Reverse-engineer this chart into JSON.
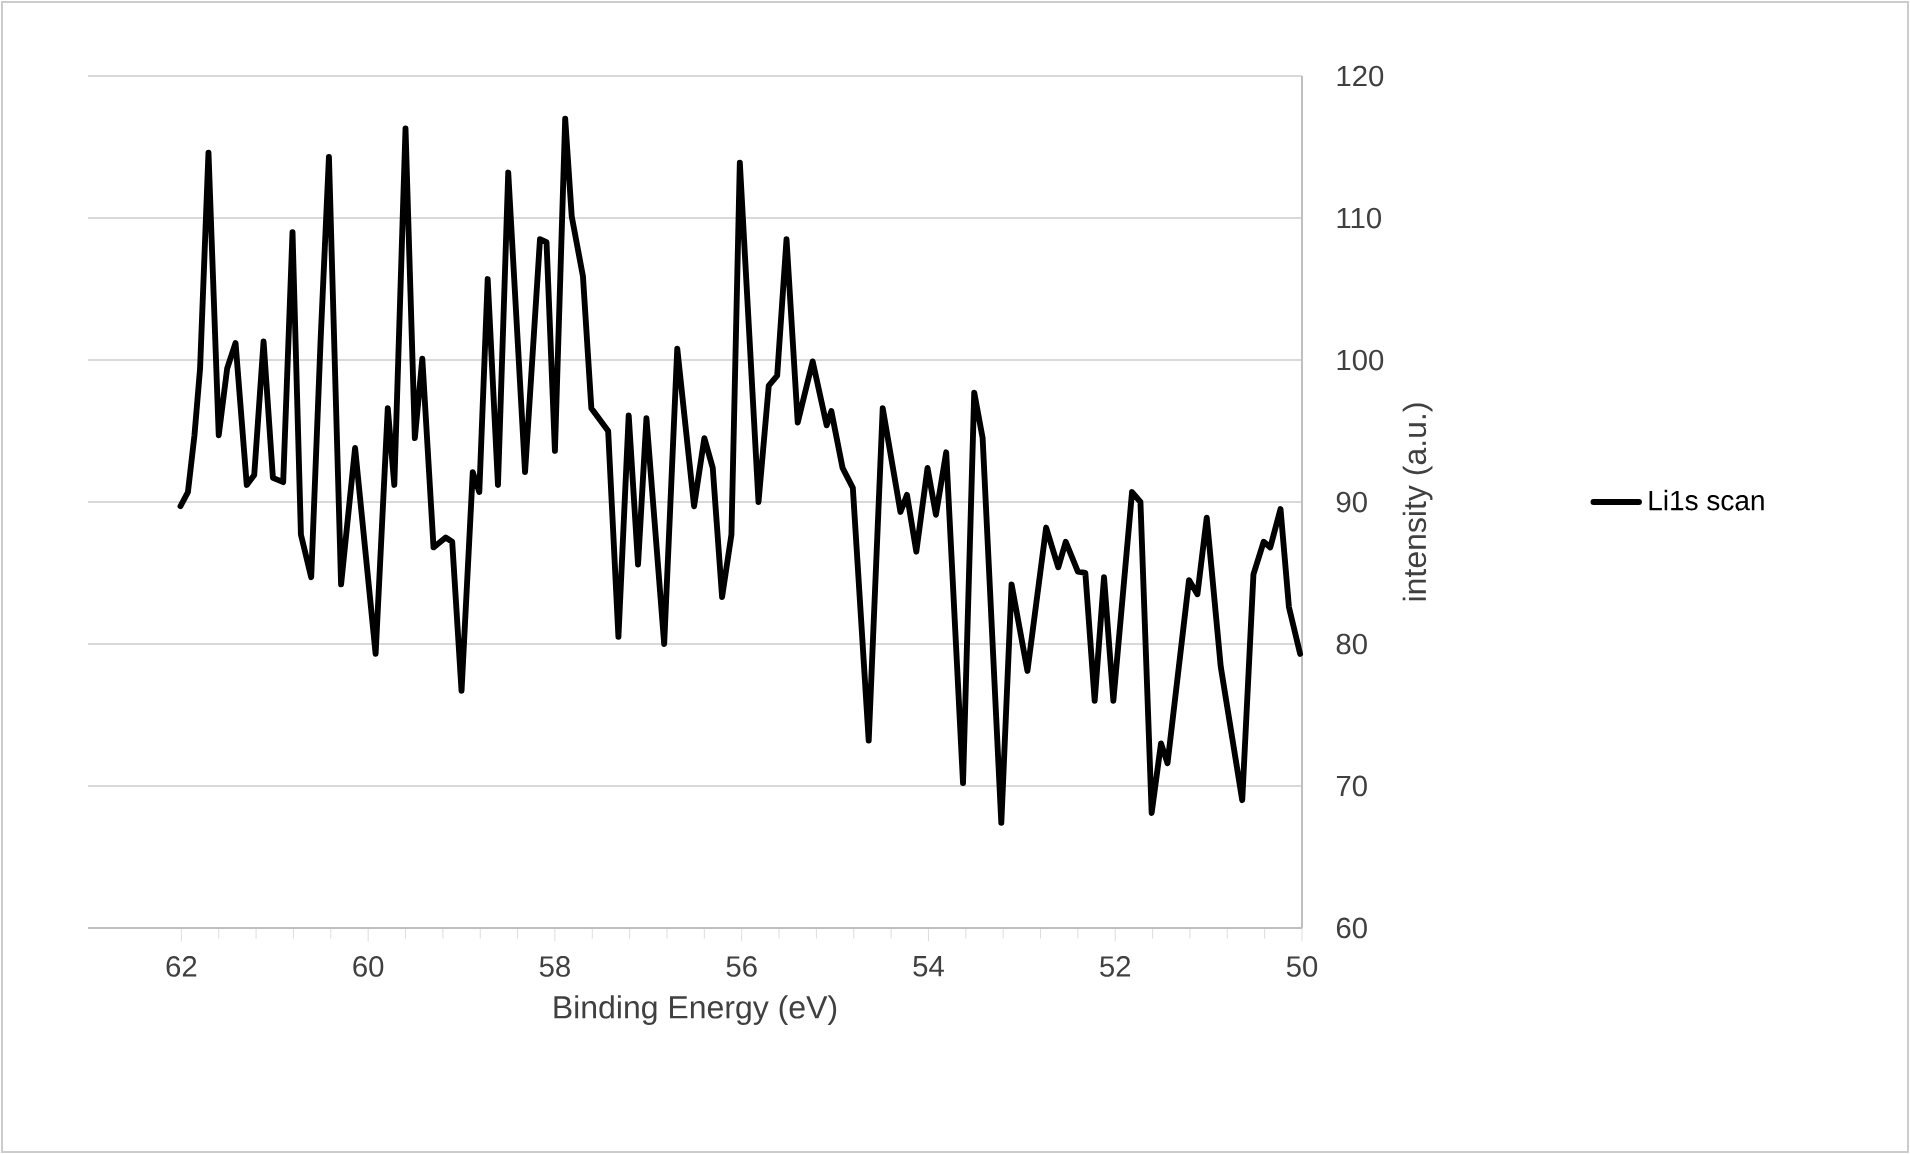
{
  "chart_data": {
    "type": "line",
    "xlabel": "Binding Energy (eV)",
    "ylabel": "intensity (a.u.)",
    "x": [
      62.01,
      61.93,
      61.86,
      61.8,
      61.71,
      61.6,
      61.51,
      61.42,
      61.3,
      61.22,
      61.12,
      61.02,
      60.91,
      60.81,
      60.72,
      60.61,
      60.51,
      60.42,
      60.29,
      60.14,
      59.92,
      59.79,
      59.72,
      59.6,
      59.5,
      59.42,
      59.3,
      59.17,
      59.1,
      59.0,
      58.88,
      58.81,
      58.72,
      58.61,
      58.5,
      58.32,
      58.16,
      58.09,
      58.0,
      57.89,
      57.82,
      57.7,
      57.61,
      57.43,
      57.32,
      57.21,
      57.11,
      57.02,
      56.83,
      56.69,
      56.51,
      56.4,
      56.31,
      56.21,
      56.11,
      56.02,
      55.82,
      55.71,
      55.62,
      55.52,
      55.4,
      55.24,
      55.09,
      55.04,
      54.92,
      54.81,
      54.64,
      54.49,
      54.3,
      54.23,
      54.13,
      54.01,
      53.92,
      53.81,
      53.63,
      53.51,
      53.42,
      53.22,
      53.11,
      52.94,
      52.74,
      52.61,
      52.53,
      52.4,
      52.32,
      52.22,
      52.12,
      52.02,
      51.82,
      51.73,
      51.61,
      51.51,
      51.44,
      51.21,
      51.12,
      51.02,
      50.87,
      50.64,
      50.52,
      50.41,
      50.34,
      50.23,
      50.14,
      50.02
    ],
    "series": [
      {
        "name": "Li1s scan",
        "color": "#000000",
        "values": [
          89.7,
          90.7,
          94.7,
          99.4,
          114.6,
          94.7,
          99.4,
          101.2,
          91.2,
          91.9,
          101.3,
          91.7,
          91.4,
          109.0,
          87.7,
          84.7,
          101.3,
          114.3,
          84.2,
          93.8,
          79.3,
          96.6,
          91.2,
          116.3,
          94.5,
          100.1,
          86.8,
          87.5,
          87.2,
          76.7,
          92.1,
          90.7,
          105.7,
          91.2,
          113.2,
          92.1,
          108.5,
          108.3,
          93.6,
          117.0,
          110.1,
          105.9,
          96.6,
          95.0,
          80.5,
          96.1,
          85.6,
          95.9,
          80.0,
          100.8,
          89.7,
          94.5,
          92.4,
          83.3,
          87.7,
          113.9,
          90.0,
          98.2,
          98.9,
          108.5,
          95.6,
          99.9,
          95.4,
          96.4,
          92.4,
          91.0,
          73.2,
          96.6,
          89.3,
          90.5,
          86.5,
          92.4,
          89.1,
          93.5,
          70.2,
          97.7,
          94.5,
          67.4,
          84.2,
          78.1,
          88.2,
          85.4,
          87.2,
          85.1,
          85.0,
          76.0,
          84.7,
          76.0,
          90.7,
          90.0,
          68.1,
          73.0,
          71.6,
          84.5,
          83.5,
          88.9,
          78.4,
          69.0,
          84.9,
          87.2,
          86.8,
          89.5,
          82.6,
          79.3
        ]
      }
    ],
    "xlim": [
      63,
      50
    ],
    "ylim": [
      60,
      120
    ],
    "xticks": [
      62,
      60,
      58,
      56,
      54,
      52,
      50
    ],
    "yticks": [
      60,
      70,
      80,
      90,
      100,
      110,
      120
    ],
    "grid": "y",
    "legend": "right",
    "line_style": "solid"
  }
}
